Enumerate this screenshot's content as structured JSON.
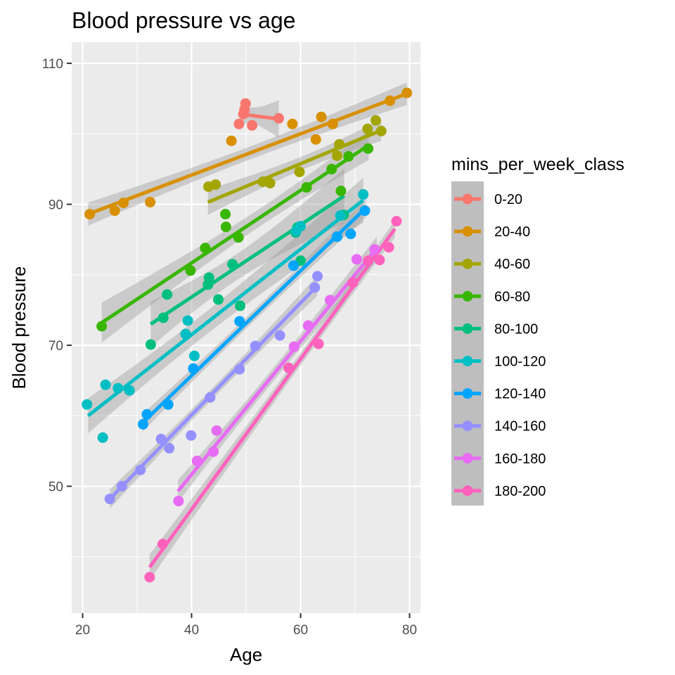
{
  "chart_data": {
    "type": "scatter",
    "title": "Blood pressure vs age",
    "xlabel": "Age",
    "ylabel": "Blood pressure",
    "xlim": [
      18,
      82
    ],
    "ylim": [
      32,
      113
    ],
    "x_ticks": [
      20,
      40,
      60,
      80
    ],
    "y_ticks": [
      50,
      70,
      90,
      110
    ],
    "grid": true,
    "legend_title": "mins_per_week_class",
    "legend_position": "right",
    "trend_lines": "linear fit with confidence band per class",
    "series": [
      {
        "name": "0-20",
        "color": "#F8766D",
        "x": [
          48.7,
          49.5,
          49.7,
          49.9,
          51.1,
          56.0
        ],
        "y": [
          101.4,
          102.8,
          103.4,
          104.3,
          101.2,
          102.2
        ],
        "fit": [
          [
            49.0,
            102.8
          ],
          [
            56.0,
            102.1
          ]
        ]
      },
      {
        "name": "20-40",
        "color": "#D89000",
        "x": [
          21.3,
          25.9,
          27.5,
          32.4,
          47.3,
          58.5,
          62.8,
          63.8,
          65.9,
          76.4,
          79.5
        ],
        "y": [
          88.6,
          89.1,
          90.2,
          90.3,
          99.0,
          101.4,
          99.2,
          102.4,
          101.4,
          104.7,
          105.8
        ],
        "fit": [
          [
            21.0,
            88.6
          ],
          [
            79.5,
            105.7
          ]
        ]
      },
      {
        "name": "40-60",
        "color": "#A3A500",
        "x": [
          43.1,
          44.4,
          53.1,
          54.4,
          59.8,
          66.7,
          67.1,
          72.3,
          73.8,
          74.8
        ],
        "y": [
          92.5,
          92.8,
          93.2,
          93.0,
          94.6,
          96.9,
          98.5,
          100.7,
          101.9,
          100.4
        ],
        "fit": [
          [
            43.0,
            90.3
          ],
          [
            74.8,
            100.5
          ]
        ]
      },
      {
        "name": "60-80",
        "color": "#39B600",
        "x": [
          23.5,
          39.8,
          42.5,
          46.2,
          46.3,
          48.6,
          61.1,
          65.7,
          67.4,
          68.8,
          72.4
        ],
        "y": [
          72.7,
          80.6,
          83.8,
          88.6,
          86.8,
          85.3,
          92.4,
          95.0,
          91.9,
          96.8,
          97.9
        ],
        "fit": [
          [
            23.5,
            73.2
          ],
          [
            72.5,
            98.4
          ]
        ]
      },
      {
        "name": "80-100",
        "color": "#00BF7D",
        "x": [
          32.5,
          34.8,
          35.5,
          43.2,
          43.0,
          44.9,
          47.5,
          48.9,
          59.1,
          59.4,
          60.0,
          67.9
        ],
        "y": [
          70.1,
          73.9,
          77.2,
          79.6,
          78.6,
          76.5,
          81.5,
          75.6,
          86.0,
          86.7,
          82.0,
          88.5
        ],
        "fit": [
          [
            32.5,
            73.0
          ],
          [
            68.0,
            91.2
          ]
        ]
      },
      {
        "name": "100-120",
        "color": "#00BFC4",
        "x": [
          20.8,
          23.7,
          24.2,
          26.5,
          28.6,
          38.9,
          39.3,
          40.5,
          59.2,
          60.0,
          67.3,
          71.5
        ],
        "y": [
          61.6,
          56.9,
          64.4,
          63.9,
          63.6,
          71.6,
          73.5,
          68.5,
          86.2,
          86.9,
          88.4,
          91.4
        ],
        "fit": [
          [
            21.0,
            60.0
          ],
          [
            71.5,
            90.6
          ]
        ]
      },
      {
        "name": "120-140",
        "color": "#00A5FF",
        "x": [
          31.1,
          31.8,
          35.7,
          40.3,
          48.8,
          58.7,
          66.7,
          69.2,
          71.8
        ],
        "y": [
          58.8,
          60.2,
          61.6,
          66.7,
          73.4,
          81.3,
          85.4,
          85.8,
          89.1
        ],
        "fit": [
          [
            31.0,
            59.0
          ],
          [
            72.0,
            89.5
          ]
        ]
      },
      {
        "name": "140-160",
        "color": "#9590FF",
        "x": [
          25.0,
          27.2,
          30.6,
          34.4,
          35.9,
          39.9,
          43.4,
          48.8,
          51.7,
          56.2,
          62.6,
          63.1
        ],
        "y": [
          48.2,
          50.0,
          52.3,
          56.7,
          55.4,
          57.2,
          62.6,
          66.6,
          69.9,
          71.4,
          78.2,
          79.8
        ],
        "fit": [
          [
            25.0,
            48.2
          ],
          [
            63.0,
            78.4
          ]
        ]
      },
      {
        "name": "160-180",
        "color": "#E76BF3",
        "x": [
          37.6,
          41.0,
          44.0,
          44.6,
          58.8,
          61.4,
          65.4,
          70.3,
          73.6
        ],
        "y": [
          47.9,
          53.6,
          54.9,
          57.9,
          69.8,
          72.8,
          76.4,
          82.2,
          83.6
        ],
        "fit": [
          [
            37.5,
            49.3
          ],
          [
            74.0,
            83.8
          ]
        ]
      },
      {
        "name": "180-200",
        "color": "#FF62BC",
        "x": [
          32.3,
          34.7,
          57.8,
          63.3,
          69.6,
          72.4,
          74.5,
          76.2,
          77.6
        ],
        "y": [
          37.1,
          41.8,
          66.8,
          70.2,
          78.9,
          82.0,
          82.1,
          83.9,
          87.6
        ],
        "fit": [
          [
            32.3,
            38.5
          ],
          [
            77.3,
            86.5
          ]
        ]
      }
    ]
  }
}
